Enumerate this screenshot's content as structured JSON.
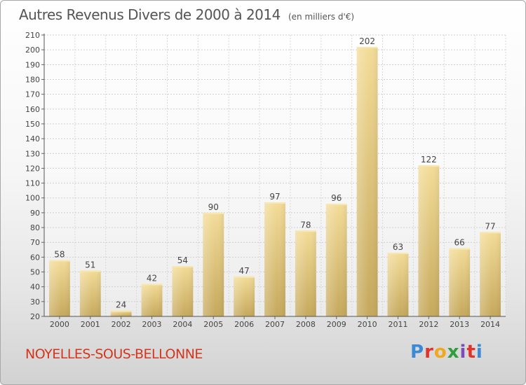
{
  "chart_data": {
    "type": "bar",
    "title": "Autres Revenus Divers de 2000 à 2014",
    "subtitle": "(en milliers d'€)",
    "categories": [
      "2000",
      "2001",
      "2002",
      "2003",
      "2004",
      "2005",
      "2006",
      "2007",
      "2008",
      "2009",
      "2010",
      "2011",
      "2012",
      "2013",
      "2014"
    ],
    "values": [
      58,
      51,
      24,
      42,
      54,
      90,
      47,
      97,
      78,
      96,
      202,
      63,
      122,
      66,
      77
    ],
    "ylim": [
      20,
      210
    ],
    "yticks": [
      20,
      30,
      40,
      50,
      60,
      70,
      80,
      90,
      100,
      110,
      120,
      130,
      140,
      150,
      160,
      170,
      180,
      190,
      200,
      210
    ],
    "grid": true,
    "bar_color": "#e8cf7e"
  },
  "footer": {
    "commune": "NOYELLES-SOUS-BELLONNE",
    "brand": "Proxiti",
    "brand_colors": [
      "#3a8ad6",
      "#e0342a",
      "#f2a81d",
      "#2f9e3c",
      "#7a4fb5",
      "#e0342a",
      "#3a8ad6"
    ]
  }
}
